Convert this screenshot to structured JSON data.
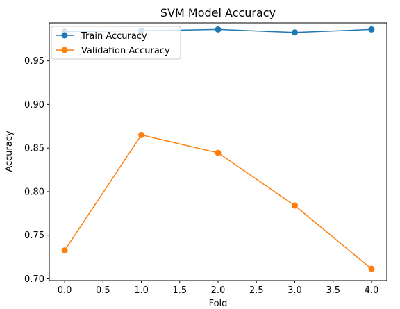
{
  "chart_data": {
    "type": "line",
    "title": "SVM Model Accuracy",
    "xlabel": "Fold",
    "ylabel": "Accuracy",
    "x": [
      0,
      1,
      2,
      3,
      4
    ],
    "xlim": [
      -0.2,
      4.2
    ],
    "ylim": [
      0.698,
      0.9935
    ],
    "xticks": [
      0.0,
      0.5,
      1.0,
      1.5,
      2.0,
      2.5,
      3.0,
      3.5,
      4.0
    ],
    "xtick_labels": [
      "0.0",
      "0.5",
      "1.0",
      "1.5",
      "2.0",
      "2.5",
      "3.0",
      "3.5",
      "4.0"
    ],
    "yticks": [
      0.7,
      0.75,
      0.8,
      0.85,
      0.9,
      0.95
    ],
    "ytick_labels": [
      "0.70",
      "0.75",
      "0.80",
      "0.85",
      "0.90",
      "0.95"
    ],
    "grid": false,
    "legend_position": "upper-left",
    "series": [
      {
        "name": "Train Accuracy",
        "color": "#1f77b4",
        "values": [
          0.9835,
          0.9845,
          0.986,
          0.9825,
          0.986
        ]
      },
      {
        "name": "Validation Accuracy",
        "color": "#ff7f0e",
        "values": [
          0.7325,
          0.865,
          0.8445,
          0.784,
          0.7115
        ]
      }
    ]
  }
}
